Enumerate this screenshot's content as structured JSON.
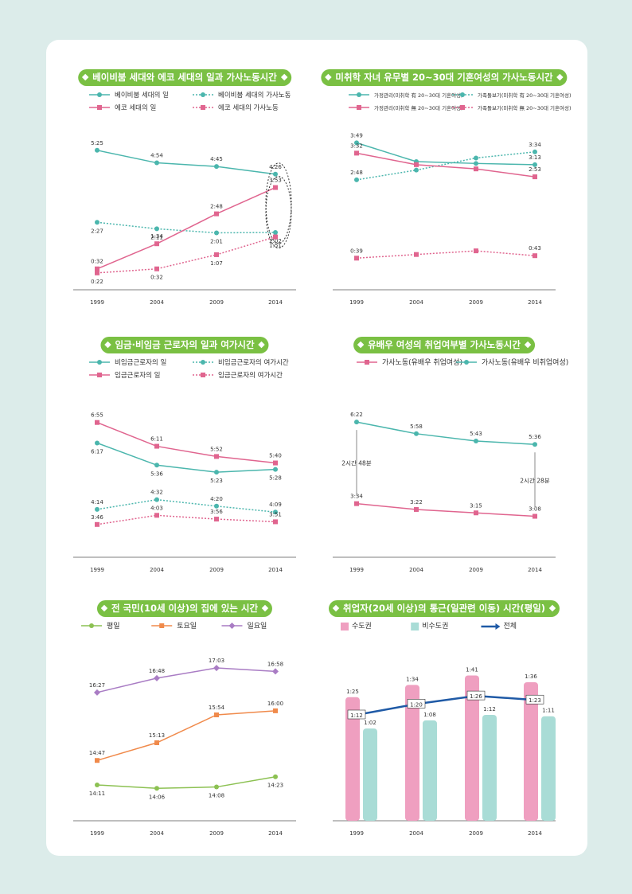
{
  "chart_data": [
    {
      "type": "line",
      "title": "베이비붐 세대와 에코 세대의 일과 가사노동시간",
      "x": [
        "1999",
        "2004",
        "2009",
        "2014"
      ],
      "ylim": [
        0,
        6
      ],
      "series": [
        {
          "name": "베이비붐 세대의 일",
          "values": [
            5.417,
            4.9,
            4.75,
            4.433
          ],
          "labels": [
            "5:25",
            "4:54",
            "4:45",
            "4:26"
          ],
          "color": "#4bb6ad",
          "style": "solid",
          "marker": "circle"
        },
        {
          "name": "베이비붐 세대의 가사노동",
          "values": [
            2.45,
            2.183,
            2.017,
            2.033
          ],
          "labels": [
            "2:27",
            "2:11",
            "2:01",
            "2:02"
          ],
          "color": "#4bb6ad",
          "style": "dotted",
          "marker": "circle"
        },
        {
          "name": "에코 세대의 일",
          "values": [
            0.533,
            1.567,
            2.8,
            3.883
          ],
          "labels": [
            "0:32",
            "1:34",
            "2:48",
            "3:53"
          ],
          "color": "#e0658f",
          "style": "solid",
          "marker": "square"
        },
        {
          "name": "에코 세대의 가사노동",
          "values": [
            0.367,
            0.533,
            1.117,
            1.85
          ],
          "labels": [
            "0:22",
            "0:32",
            "1:07",
            "1:51"
          ],
          "color": "#e0658f",
          "style": "dotted",
          "marker": "square"
        }
      ]
    },
    {
      "type": "line",
      "title": "미취학 자녀 유무별 20~30대 기혼여성의 가사노동시간",
      "x": [
        "1999",
        "2004",
        "2009",
        "2014"
      ],
      "ylim": [
        0,
        4
      ],
      "series": [
        {
          "name": "가정관리(미취학 有 20~30대 기혼여성)",
          "values": [
            3.817,
            3.3,
            3.25,
            3.217
          ],
          "labels": [
            "3:49",
            "",
            "",
            "3:13"
          ],
          "color": "#4bb6ad",
          "style": "solid",
          "marker": "circle"
        },
        {
          "name": "가족돌보기(미취학 有 20~30대 기혼여성)",
          "values": [
            2.8,
            3.067,
            3.4,
            3.567
          ],
          "labels": [
            "2:48",
            "",
            "",
            "3:34"
          ],
          "color": "#4bb6ad",
          "style": "dotted",
          "marker": "circle"
        },
        {
          "name": "가정관리(미취학 無 20~30대 기혼여성)",
          "values": [
            3.533,
            3.217,
            3.1,
            2.883
          ],
          "labels": [
            "3:32",
            "",
            "",
            "2:53"
          ],
          "color": "#e0658f",
          "style": "solid",
          "marker": "square"
        },
        {
          "name": "가족돌보기(미취학 無 20~30대 기혼여성)",
          "values": [
            0.65,
            0.75,
            0.85,
            0.717
          ],
          "labels": [
            "0:39",
            "",
            "",
            "0:43"
          ],
          "color": "#e0658f",
          "style": "dotted",
          "marker": "square"
        }
      ]
    },
    {
      "type": "line",
      "title": "임금·비임금 근로자의 일과 여가시간",
      "x": [
        "1999",
        "2004",
        "2009",
        "2014"
      ],
      "ylim": [
        3,
        7.5
      ],
      "series": [
        {
          "name": "비임금근로자의 일",
          "values": [
            6.283,
            5.6,
            5.383,
            5.467
          ],
          "labels": [
            "6:17",
            "5:36",
            "5:23",
            "5:28"
          ],
          "color": "#4bb6ad",
          "style": "solid",
          "marker": "circle"
        },
        {
          "name": "비임금근로자의 여가시간",
          "values": [
            4.233,
            4.533,
            4.333,
            4.15
          ],
          "labels": [
            "4:14",
            "4:32",
            "4:20",
            "4:09"
          ],
          "color": "#4bb6ad",
          "style": "dotted",
          "marker": "circle"
        },
        {
          "name": "임금근로자의 일",
          "values": [
            6.917,
            6.183,
            5.867,
            5.667
          ],
          "labels": [
            "6:55",
            "6:11",
            "5:52",
            "5:40"
          ],
          "color": "#e0658f",
          "style": "solid",
          "marker": "square"
        },
        {
          "name": "임금근로자의 여가시간",
          "values": [
            3.767,
            4.05,
            3.933,
            3.85
          ],
          "labels": [
            "3:46",
            "4:03",
            "3:56",
            "3:51"
          ],
          "color": "#e0658f",
          "style": "dotted",
          "marker": "square"
        }
      ]
    },
    {
      "type": "line",
      "title": "유배우 여성의 취업여부별 가사노동시간",
      "x": [
        "1999",
        "2004",
        "2009",
        "2014"
      ],
      "ylim": [
        2,
        7
      ],
      "annotations": [
        "2시간 48분",
        "2시간 28분"
      ],
      "series": [
        {
          "name": "가사노동(유배우 취업여성)",
          "values": [
            3.567,
            3.367,
            3.25,
            3.133
          ],
          "labels": [
            "3:34",
            "3:22",
            "3:15",
            "3:08"
          ],
          "color": "#e0658f",
          "style": "solid",
          "marker": "square"
        },
        {
          "name": "가사노동(유배우 비취업여성)",
          "values": [
            6.367,
            5.967,
            5.717,
            5.6
          ],
          "labels": [
            "6:22",
            "5:58",
            "5:43",
            "5:36"
          ],
          "color": "#4bb6ad",
          "style": "solid",
          "marker": "circle"
        }
      ]
    },
    {
      "type": "line",
      "title": "전 국민(10세 이상)의 집에 있는 시간",
      "x": [
        "1999",
        "2004",
        "2009",
        "2014"
      ],
      "ylim": [
        13.5,
        17.5
      ],
      "series": [
        {
          "name": "평일",
          "values": [
            14.183,
            14.1,
            14.133,
            14.383
          ],
          "labels": [
            "14:11",
            "14:06",
            "14:08",
            "14:23"
          ],
          "color": "#8cc152",
          "style": "solid",
          "marker": "circle"
        },
        {
          "name": "토요일",
          "values": [
            14.783,
            15.217,
            15.9,
            16.0
          ],
          "labels": [
            "14:47",
            "15:13",
            "15:54",
            "16:00"
          ],
          "color": "#f08a4b",
          "style": "solid",
          "marker": "square"
        },
        {
          "name": "일요일",
          "values": [
            16.45,
            16.8,
            17.05,
            16.967
          ],
          "labels": [
            "16:27",
            "16:48",
            "17:03",
            "16:58"
          ],
          "color": "#a97cc4",
          "style": "solid",
          "marker": "diamond"
        }
      ]
    },
    {
      "type": "bar",
      "title": "취업자(20세 이상)의 통근(일관련 이동) 시간(평일)",
      "categories": [
        "1999",
        "2004",
        "2009",
        "2014"
      ],
      "ylim": [
        0,
        2
      ],
      "series": [
        {
          "name": "수도권",
          "values": [
            1.417,
            1.567,
            1.683,
            1.6
          ],
          "labels": [
            "1:25",
            "1:34",
            "1:41",
            "1:36"
          ],
          "color": "#ef9fc0"
        },
        {
          "name": "비수도권",
          "values": [
            1.033,
            1.133,
            1.2,
            1.183
          ],
          "labels": [
            "1:02",
            "1:08",
            "1:12",
            "1:11"
          ],
          "color": "#a9dcd6"
        },
        {
          "name": "전체",
          "type": "line",
          "values": [
            1.2,
            1.333,
            1.433,
            1.383
          ],
          "labels": [
            "1:12",
            "1:20",
            "1:26",
            "1:23"
          ],
          "color": "#1f5aa6"
        }
      ]
    }
  ]
}
